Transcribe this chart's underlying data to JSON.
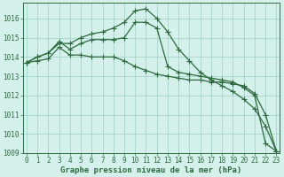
{
  "x": [
    0,
    1,
    2,
    3,
    4,
    5,
    6,
    7,
    8,
    9,
    10,
    11,
    12,
    13,
    14,
    15,
    16,
    17,
    18,
    19,
    20,
    21,
    22,
    23
  ],
  "line1": [
    1013.7,
    1014.0,
    1014.2,
    1014.7,
    1014.7,
    1015.0,
    1015.2,
    1015.3,
    1015.5,
    1015.8,
    1016.4,
    1016.5,
    1016.0,
    1015.3,
    1014.4,
    1013.8,
    1013.2,
    1012.8,
    1012.5,
    1012.2,
    1011.8,
    1011.3,
    1010.4,
    1009.1
  ],
  "line2": [
    1013.7,
    1014.0,
    1014.2,
    1014.8,
    1014.4,
    1014.7,
    1014.9,
    1014.9,
    1014.9,
    1015.0,
    1015.8,
    1015.8,
    1015.5,
    1013.5,
    1013.2,
    1013.1,
    1013.0,
    1012.9,
    1012.8,
    1012.7,
    1012.4,
    1012.0,
    1009.5,
    1009.1
  ],
  "line3": [
    1013.7,
    1013.8,
    1013.9,
    1014.5,
    1014.1,
    1014.1,
    1014.0,
    1014.0,
    1014.0,
    1013.8,
    1013.5,
    1013.3,
    1013.1,
    1013.0,
    1012.9,
    1012.8,
    1012.8,
    1012.7,
    1012.7,
    1012.6,
    1012.5,
    1012.1,
    1011.0,
    1009.1
  ],
  "ylim_min": 1009,
  "ylim_max": 1016.8,
  "yticks": [
    1009,
    1010,
    1011,
    1012,
    1013,
    1014,
    1015,
    1016
  ],
  "bg_color": "#d4f0ea",
  "grid_color": "#9ecfc4",
  "line_color": "#2d6a3f",
  "xlabel": "Graphe pression niveau de la mer (hPa)",
  "marker": "+",
  "lw": 0.9,
  "markersize": 4.0,
  "tick_fontsize": 5.5,
  "xlabel_fontsize": 6.5
}
